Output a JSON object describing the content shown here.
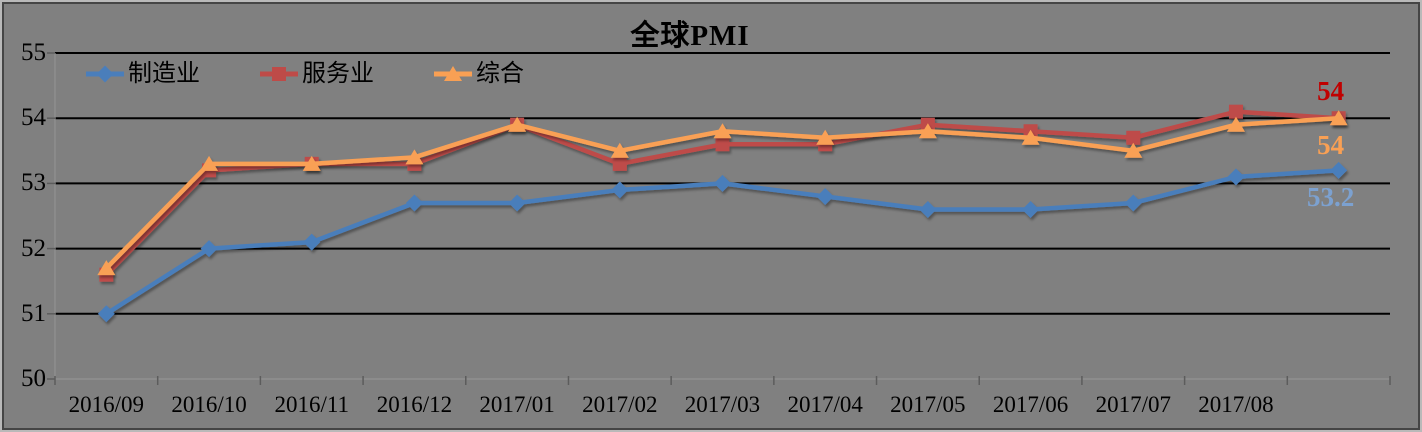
{
  "window": {
    "kind": "chart-image"
  },
  "colors": {
    "background": "#808080",
    "frame_outer": "#b9b9b9",
    "frame_inner": "#454545",
    "gridline": "#000000",
    "axis_line": "#929292",
    "tick": "#5c5c5c",
    "text": "#000000"
  },
  "chart_data": {
    "type": "line",
    "title": "全球PMI",
    "xlabel": "",
    "ylabel": "",
    "ylim": [
      50,
      55
    ],
    "yticks": [
      55,
      54,
      53,
      52,
      51,
      50
    ],
    "grid": true,
    "legend_position": "top-left-horizontal",
    "categories": [
      "2016/09",
      "2016/10",
      "2016/11",
      "2016/12",
      "2017/01",
      "2017/02",
      "2017/03",
      "2017/04",
      "2017/05",
      "2017/06",
      "2017/07",
      "2017/08",
      ""
    ],
    "series": [
      {
        "name": "制造业",
        "marker": "diamond",
        "color": "#4A7EBB",
        "end_label": "53.2",
        "end_label_color": "#7CA1D0",
        "end_label_position": "below",
        "values": [
          51.0,
          52.0,
          52.1,
          52.7,
          52.7,
          52.9,
          53.0,
          52.8,
          52.6,
          52.6,
          52.7,
          53.1,
          53.2
        ]
      },
      {
        "name": "服务业",
        "marker": "square",
        "color": "#BE4B48",
        "end_label": "54",
        "end_label_color": "#C00000",
        "end_label_position": "above",
        "values": [
          51.6,
          53.2,
          53.3,
          53.3,
          53.9,
          53.3,
          53.6,
          53.6,
          53.9,
          53.8,
          53.7,
          54.1,
          54.0
        ]
      },
      {
        "name": "综合",
        "marker": "triangle",
        "color": "#F9A054",
        "end_label": "54",
        "end_label_color": "#F9A054",
        "end_label_position": "below",
        "values": [
          51.7,
          53.3,
          53.3,
          53.4,
          53.9,
          53.5,
          53.8,
          53.7,
          53.8,
          53.7,
          53.5,
          53.9,
          54.0
        ]
      }
    ]
  }
}
